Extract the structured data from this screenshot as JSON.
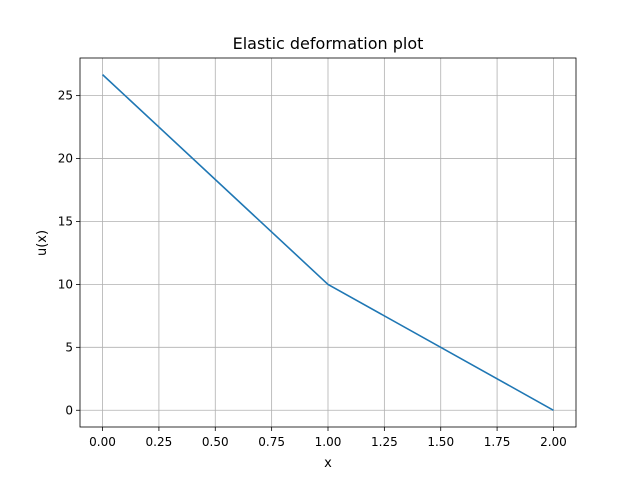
{
  "chart_data": {
    "type": "line",
    "title": "Elastic deformation plot",
    "xlabel": "x",
    "ylabel": "u(x)",
    "xlim": [
      -0.1,
      2.1
    ],
    "ylim": [
      -1.33,
      27.99
    ],
    "xticks": [
      0.0,
      0.25,
      0.5,
      0.75,
      1.0,
      1.25,
      1.5,
      1.75,
      2.0
    ],
    "xtick_labels": [
      "0.00",
      "0.25",
      "0.50",
      "0.75",
      "1.00",
      "1.25",
      "1.50",
      "1.75",
      "2.00"
    ],
    "yticks": [
      0,
      5,
      10,
      15,
      20,
      25
    ],
    "ytick_labels": [
      "0",
      "5",
      "10",
      "15",
      "20",
      "25"
    ],
    "grid": true,
    "series": [
      {
        "color": "#1f77b4",
        "x": [
          0.0,
          1.0,
          2.0
        ],
        "y": [
          26.67,
          10.0,
          0.0
        ]
      }
    ]
  }
}
